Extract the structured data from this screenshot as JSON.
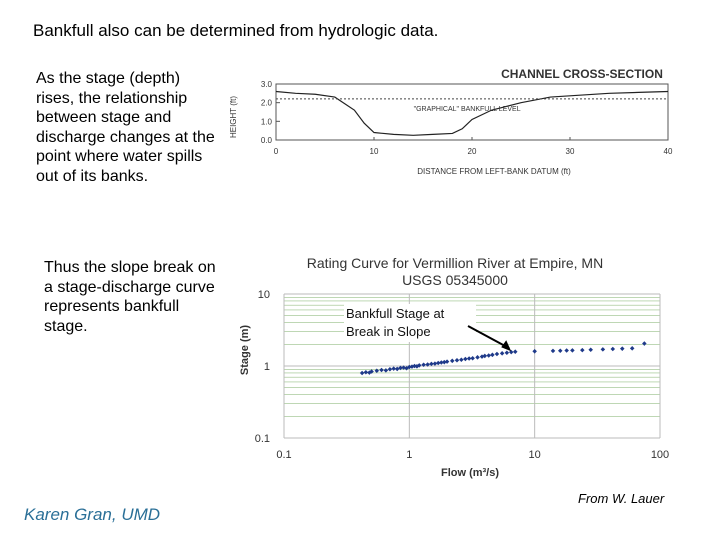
{
  "slide": {
    "title": "Bankfull also can be determined from hydrologic data.",
    "para1": "As the stage (depth) rises, the relationship between stage and discharge changes at the point where water spills out of its banks.",
    "para2": "Thus the slope break on a stage-discharge curve represents bankfull stage.",
    "author": "Karen Gran, UMD",
    "credit": "From W. Lauer"
  },
  "colors": {
    "points": "#1f3a8a",
    "author": "#2a6f97",
    "grid": "#7fb069"
  },
  "chart_data": [
    {
      "type": "area",
      "title": "CHANNEL CROSS-SECTION",
      "xlabel": "DISTANCE FROM LEFT-BANK DATUM (ft)",
      "ylabel": "HEIGHT (ft)",
      "xlim": [
        0,
        40
      ],
      "ylim": [
        0,
        3
      ],
      "x_ticks": [
        "0",
        "10",
        "20",
        "30",
        "40"
      ],
      "y_ticks": [
        "0.0",
        "1.0",
        "2.0",
        "3.0"
      ],
      "bankfull_level": 2.2,
      "annotation": "\"GRAPHICAL\" BANKFULL LEVEL",
      "profile": [
        [
          0,
          2.6
        ],
        [
          2,
          2.5
        ],
        [
          4,
          2.45
        ],
        [
          6,
          2.3
        ],
        [
          8,
          1.6
        ],
        [
          9,
          0.9
        ],
        [
          10,
          0.4
        ],
        [
          12,
          0.3
        ],
        [
          14,
          0.25
        ],
        [
          16,
          0.3
        ],
        [
          18,
          0.35
        ],
        [
          19,
          0.6
        ],
        [
          20,
          1.1
        ],
        [
          22,
          1.6
        ],
        [
          25,
          2.0
        ],
        [
          28,
          2.3
        ],
        [
          31,
          2.4
        ],
        [
          34,
          2.5
        ],
        [
          37,
          2.55
        ],
        [
          40,
          2.6
        ]
      ]
    },
    {
      "type": "scatter",
      "title": "Rating Curve for Vermillion River at Empire, MN",
      "subtitle": "USGS 05345000",
      "xlabel": "Flow (m³/s)",
      "ylabel": "Stage (m)",
      "xscale": "log",
      "yscale": "log",
      "xlim": [
        0.1,
        100
      ],
      "ylim": [
        0.1,
        10
      ],
      "x_ticks": [
        "0.1",
        "1",
        "10",
        "100"
      ],
      "y_ticks": [
        "0.1",
        "1",
        "10"
      ],
      "grid": true,
      "annotation": "Bankfull Stage at Break in Slope",
      "annotation_point": [
        6.5,
        1.55
      ],
      "points": [
        [
          0.42,
          0.8
        ],
        [
          0.45,
          0.82
        ],
        [
          0.48,
          0.81
        ],
        [
          0.5,
          0.84
        ],
        [
          0.55,
          0.86
        ],
        [
          0.6,
          0.88
        ],
        [
          0.65,
          0.87
        ],
        [
          0.7,
          0.9
        ],
        [
          0.75,
          0.92
        ],
        [
          0.8,
          0.91
        ],
        [
          0.85,
          0.94
        ],
        [
          0.9,
          0.95
        ],
        [
          0.95,
          0.93
        ],
        [
          1.0,
          0.97
        ],
        [
          1.05,
          0.98
        ],
        [
          1.1,
          1.0
        ],
        [
          1.15,
          0.99
        ],
        [
          1.2,
          1.02
        ],
        [
          1.3,
          1.04
        ],
        [
          1.4,
          1.05
        ],
        [
          1.5,
          1.07
        ],
        [
          1.6,
          1.08
        ],
        [
          1.7,
          1.1
        ],
        [
          1.8,
          1.12
        ],
        [
          1.9,
          1.13
        ],
        [
          2.0,
          1.15
        ],
        [
          2.2,
          1.18
        ],
        [
          2.4,
          1.2
        ],
        [
          2.6,
          1.22
        ],
        [
          2.8,
          1.25
        ],
        [
          3.0,
          1.27
        ],
        [
          3.2,
          1.28
        ],
        [
          3.5,
          1.32
        ],
        [
          3.8,
          1.35
        ],
        [
          4.0,
          1.38
        ],
        [
          4.3,
          1.4
        ],
        [
          4.6,
          1.43
        ],
        [
          5.0,
          1.47
        ],
        [
          5.5,
          1.5
        ],
        [
          6.0,
          1.53
        ],
        [
          6.5,
          1.56
        ],
        [
          7.0,
          1.58
        ],
        [
          10.0,
          1.6
        ],
        [
          14.0,
          1.62
        ],
        [
          16.0,
          1.63
        ],
        [
          18.0,
          1.64
        ],
        [
          20.0,
          1.65
        ],
        [
          24.0,
          1.66
        ],
        [
          28.0,
          1.68
        ],
        [
          35.0,
          1.7
        ],
        [
          42.0,
          1.72
        ],
        [
          50.0,
          1.74
        ],
        [
          60.0,
          1.76
        ],
        [
          75.0,
          2.05
        ]
      ]
    }
  ]
}
